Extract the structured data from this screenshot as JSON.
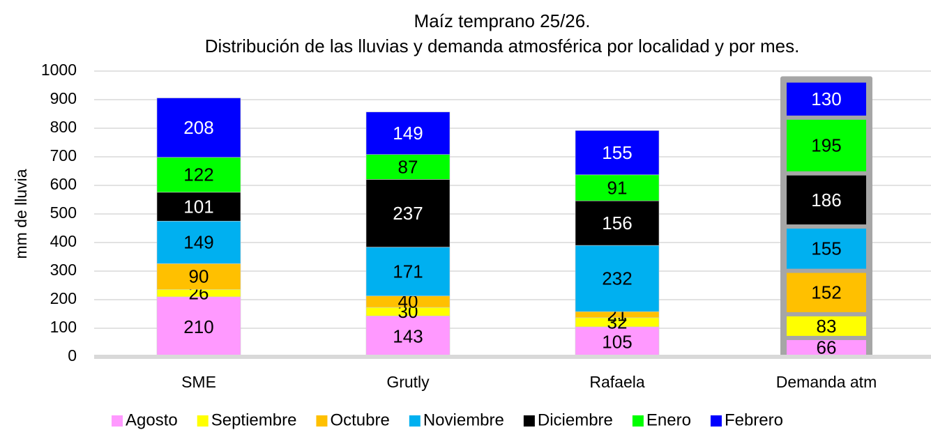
{
  "chart_data": {
    "type": "stacked_bar",
    "title": "Maíz temprano 25/26.",
    "subtitle": "Distribución de las lluvias y demanda atmosférica por localidad y por mes.",
    "y_label": "mm de lluvia",
    "categories": [
      "SME",
      "Grutly",
      "Rafaela",
      "Demanda atm"
    ],
    "series": [
      {
        "name": "Agosto",
        "color": "#ff99ff",
        "values": [
          210,
          143,
          105,
          66
        ]
      },
      {
        "name": "Septiembre",
        "color": "#ffff00",
        "values": [
          26,
          30,
          32,
          83
        ]
      },
      {
        "name": "Octubre",
        "color": "#ffc000",
        "values": [
          90,
          40,
          21,
          152
        ]
      },
      {
        "name": "Noviembre",
        "color": "#00b0f0",
        "values": [
          149,
          171,
          232,
          155
        ]
      },
      {
        "name": "Diciembre",
        "color": "#000000",
        "values": [
          101,
          237,
          156,
          186
        ]
      },
      {
        "name": "Enero",
        "color": "#00ff00",
        "values": [
          122,
          87,
          91,
          195
        ]
      },
      {
        "name": "Febrero",
        "color": "#0000ff",
        "values": [
          208,
          149,
          155,
          130
        ]
      }
    ],
    "edgecolors": [
      null,
      null,
      null,
      "#a6a6a6"
    ],
    "ylim": [
      0,
      1000
    ],
    "yticks": [
      0,
      100,
      200,
      300,
      400,
      500,
      600,
      700,
      800,
      900,
      1000
    ],
    "grid": true,
    "legend": "bottom"
  }
}
